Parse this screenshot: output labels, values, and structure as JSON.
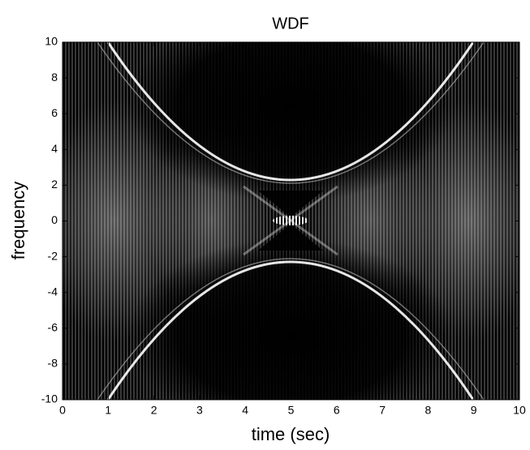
{
  "chart_data": {
    "type": "heatmap",
    "title": "WDF",
    "x_label": "time (sec)",
    "y_label": "frequency",
    "xlim": [
      0,
      10
    ],
    "ylim": [
      -10,
      10
    ],
    "xticks": [
      0,
      1,
      2,
      3,
      4,
      5,
      6,
      7,
      8,
      9,
      10
    ],
    "yticks": [
      -10,
      -8,
      -6,
      -4,
      -2,
      0,
      2,
      4,
      6,
      8,
      10
    ]
  }
}
